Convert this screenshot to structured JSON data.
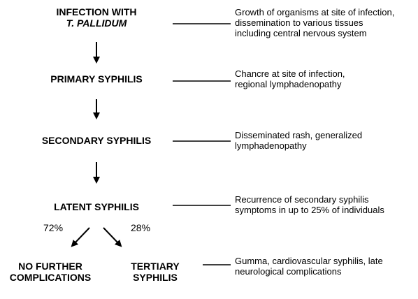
{
  "stages": {
    "infection": {
      "line1": "INFECTION WITH",
      "line2": "T. PALLIDUM"
    },
    "primary": {
      "label": "PRIMARY SYPHILIS"
    },
    "secondary": {
      "label": "SECONDARY SYPHILIS"
    },
    "latent": {
      "label": "LATENT SYPHILIS"
    },
    "no_further": {
      "line1": "NO FURTHER",
      "line2": "COMPLICATIONS"
    },
    "tertiary": {
      "line1": "TERTIARY",
      "line2": "SYPHILIS"
    }
  },
  "descriptions": {
    "infection": [
      "Growth of organisms at site of infection,",
      "dissemination to various tissues",
      "including central nervous system"
    ],
    "primary": [
      "Chancre at site of infection,",
      "regional lymphadenopathy"
    ],
    "secondary": [
      "Disseminated rash, generalized",
      "lymphadenopathy"
    ],
    "latent": [
      "Recurrence of secondary syphilis",
      "symptoms in up to 25% of individuals"
    ],
    "tertiary": [
      "Gumma, cardiovascular syphilis, late",
      "neurological complications"
    ]
  },
  "branches": {
    "left_pct": "72%",
    "right_pct": "28%"
  }
}
